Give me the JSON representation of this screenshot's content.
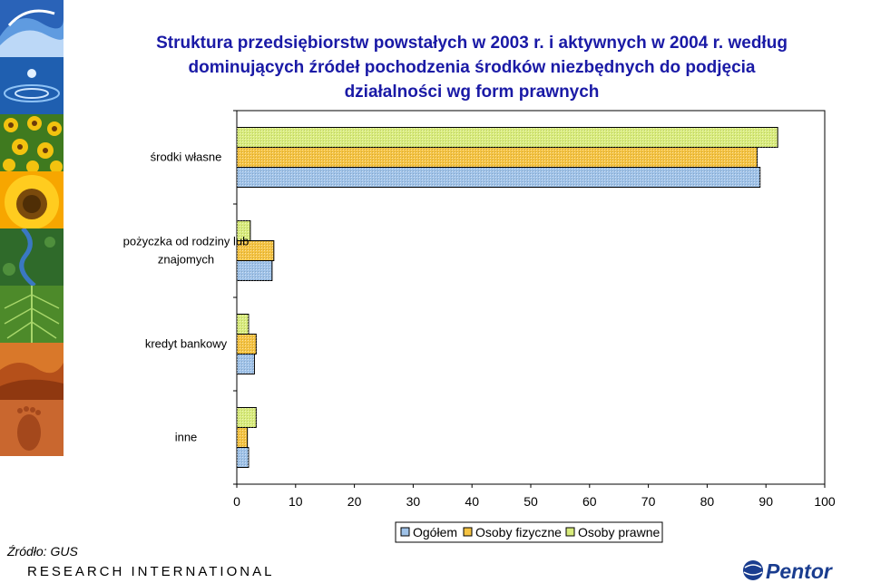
{
  "title_lines": [
    "Struktura przedsiębiorstw powstałych w 2003 r. i aktywnych w 2004 r. według",
    "dominujących źródeł pochodzenia środków niezbędnych do podjęcia",
    "działalności wg form prawnych"
  ],
  "source": "Źródło: GUS",
  "footer_brand": "RESEARCH INTERNATIONAL",
  "logo_text": "Pentor",
  "colors": {
    "title": "#1a1aa6",
    "ogolem": "#9fc2e8",
    "fizyczne": "#f5c342",
    "prawne": "#d9ec7c"
  },
  "decorative_strip": [
    "wave-image",
    "water-drop-image",
    "sunflower-field-image",
    "sunflower-image",
    "river-aerial-image",
    "leaf-image",
    "desert-dunes-image",
    "footprint-sand-image"
  ],
  "chart_data": {
    "type": "bar",
    "orientation": "horizontal",
    "categories": [
      "środki własne",
      "pożyczka od rodziny lub znajomych",
      "kredyt bankowy",
      "inne"
    ],
    "category_lines": [
      [
        "środki własne"
      ],
      [
        "pożyczka od rodziny lub",
        "znajomych"
      ],
      [
        "kredyt bankowy"
      ],
      [
        "inne"
      ]
    ],
    "series": [
      {
        "name": "Ogółem",
        "values": [
          89,
          6,
          3,
          2
        ]
      },
      {
        "name": "Osoby fizyczne",
        "values": [
          88.5,
          6.3,
          3.3,
          1.8
        ]
      },
      {
        "name": "Osoby prawne",
        "values": [
          92,
          2.3,
          2,
          3.3
        ]
      }
    ],
    "xlim": [
      0,
      100
    ],
    "xticks": [
      0,
      10,
      20,
      30,
      40,
      50,
      60,
      70,
      80,
      90,
      100
    ],
    "legend_position": "bottom",
    "grid": false
  }
}
